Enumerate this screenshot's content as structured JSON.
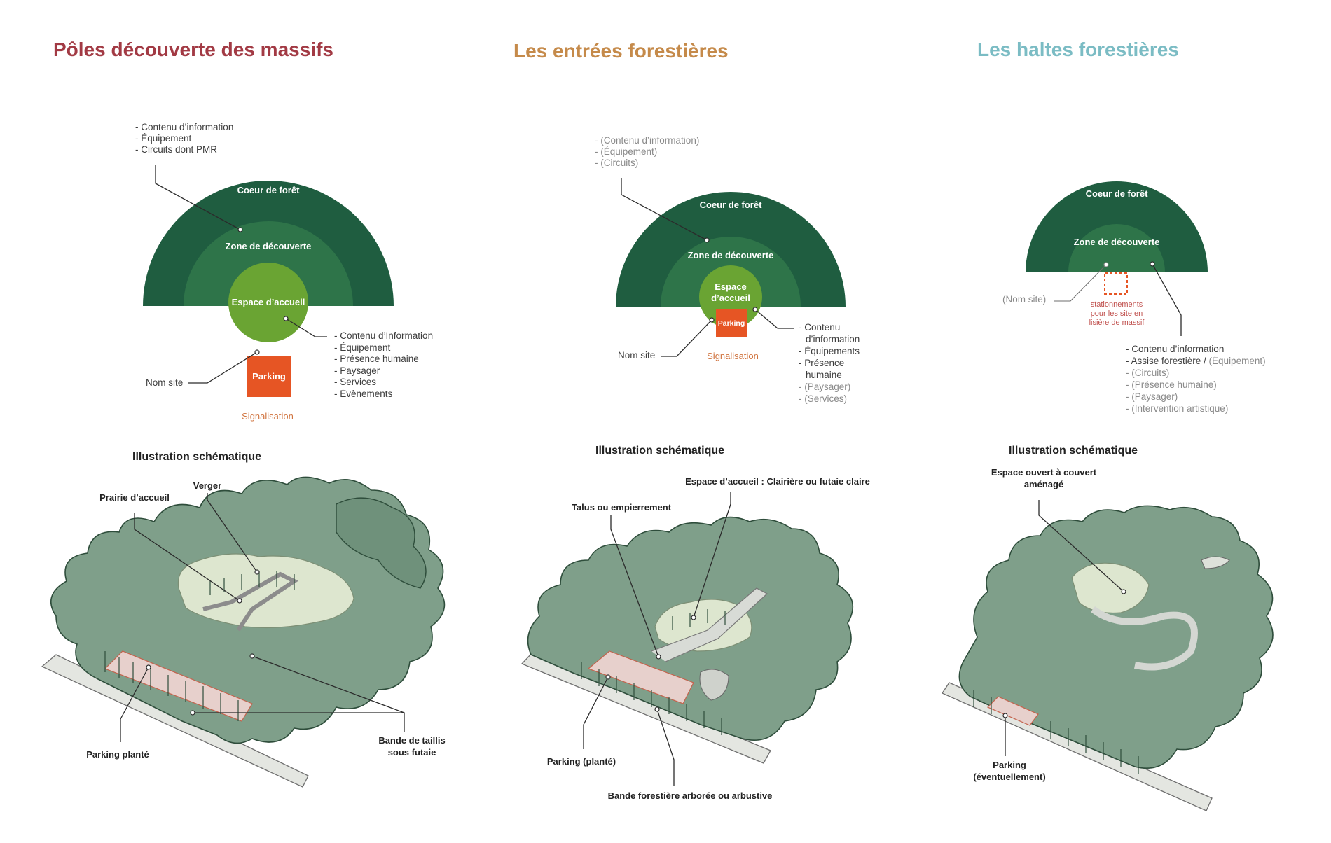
{
  "colors": {
    "title_poles": "#a23a44",
    "title_entrees": "#c58a4a",
    "title_haltes": "#7bbcc4",
    "coeur_de_foret": "#1f5d40",
    "zone_de_decouverte": "#2e7449",
    "espace_accueil": "#6aa433",
    "parking": "#e65524",
    "signalisation": "#d0733e",
    "stationnements": "#c0504d"
  },
  "panels": [
    {
      "title": "Pôles découverte des massifs",
      "top_labels": [
        "- Contenu d’information",
        "- Équipement",
        "- Circuits dont PMR"
      ],
      "zone_outer": "Coeur de forêt",
      "zone_middle": "Zone de découverte",
      "zone_inner": "Espace d’accueil",
      "parking": "Parking",
      "nom_site": "Nom site",
      "signalisation": "Signalisation",
      "right_labels": [
        "- Contenu d’Information",
        "- Équipement",
        "- Présence humaine",
        "- Paysager",
        "- Services",
        "- Évènements"
      ],
      "illustration_title": "Illustration schématique",
      "illustration_labels": {
        "verger": "Verger",
        "prairie": "Prairie d’accueil",
        "bande": [
          "Bande de taillis",
          "sous futaie"
        ],
        "parking": "Parking planté"
      }
    },
    {
      "title": "Les entrées forestières",
      "top_labels": [
        "- (Contenu d’information)",
        "- (Équipement)",
        "- (Circuits)"
      ],
      "zone_outer": "Coeur de forêt",
      "zone_middle": "Zone de découverte",
      "zone_inner": [
        "Espace",
        "d’accueil"
      ],
      "parking": "Parking",
      "nom_site": "Nom site",
      "signalisation": "Signalisation",
      "right_labels": [
        "- Contenu",
        "d’information",
        "- Équipements",
        "- Présence",
        "humaine",
        "- (Paysager)",
        "- (Services)"
      ],
      "illustration_title": "Illustration schématique",
      "illustration_labels": {
        "espace": "Espace d’accueil : Clairière ou futaie claire",
        "talus": "Talus ou empierrement",
        "parking": "Parking (planté)",
        "bande": "Bande forestière arborée ou arbustive"
      }
    },
    {
      "title": "Les haltes forestières",
      "zone_outer": "Coeur de forêt",
      "zone_middle": "Zone de découverte",
      "nom_site": "(Nom site)",
      "stationnements": [
        "stationnements",
        "pour les site en",
        "lisière de massif"
      ],
      "labels_black": [
        "- Contenu d’information",
        "- Assise forestière / "
      ],
      "labels_grey_inline": "(Équipement)",
      "labels_grey": [
        "- (Circuits)",
        "- (Présence humaine)",
        "- (Paysager)",
        "- (Intervention artistique)"
      ],
      "illustration_title": "Illustration schématique",
      "illustration_labels": {
        "espace": [
          "Espace ouvert à couvert",
          "aménagé"
        ],
        "parking": [
          "Parking",
          "(éventuellement)"
        ]
      }
    }
  ]
}
